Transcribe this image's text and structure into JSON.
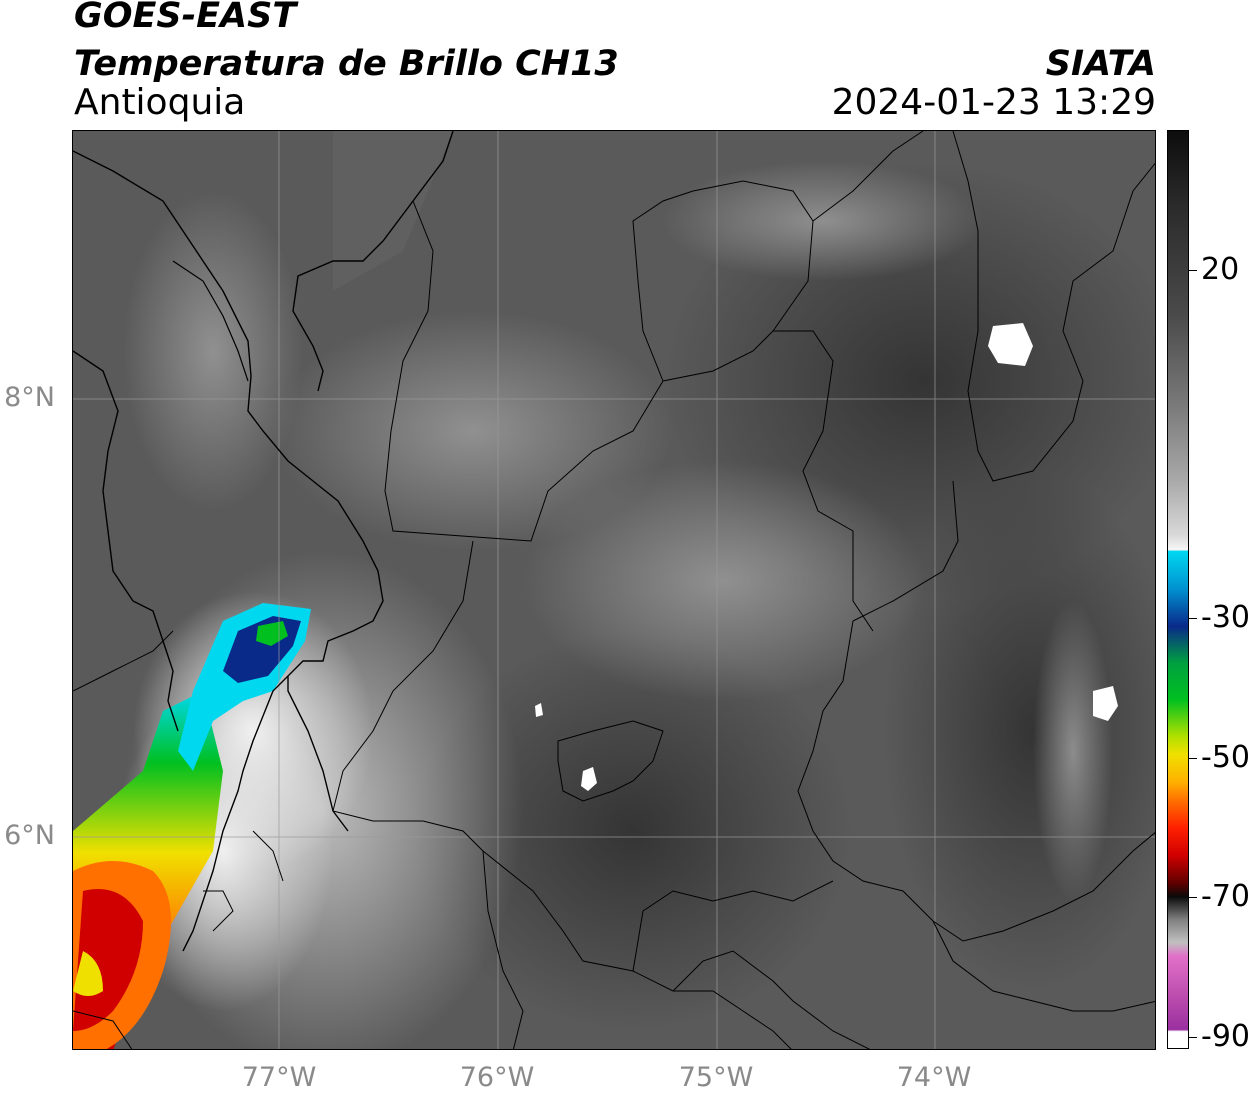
{
  "header": {
    "satellite": "GOES-EAST",
    "product": "Temperatura de Brillo CH13",
    "region": "Antioquia",
    "organization": "SIATA",
    "datetime": "2024-01-23 13:29"
  },
  "map": {
    "latitude_labels": [
      "8°N",
      "6°N"
    ],
    "longitude_labels": [
      "77°W",
      "76°W",
      "75°W",
      "74°W"
    ]
  },
  "colorbar": {
    "tick_labels": [
      "20",
      "-30",
      "-50",
      "-70",
      "-90"
    ],
    "colors": {
      "warm_top": "#111111",
      "white": "#f5f5f5",
      "cyan": "#00d8f0",
      "blue": "#0a2a8a",
      "green": "#00c020",
      "yellow": "#f0e000",
      "orange": "#ff7000",
      "red": "#d00000",
      "dark": "#1a1a1a",
      "pink": "#e070c8",
      "purple": "#9a30a0"
    }
  }
}
